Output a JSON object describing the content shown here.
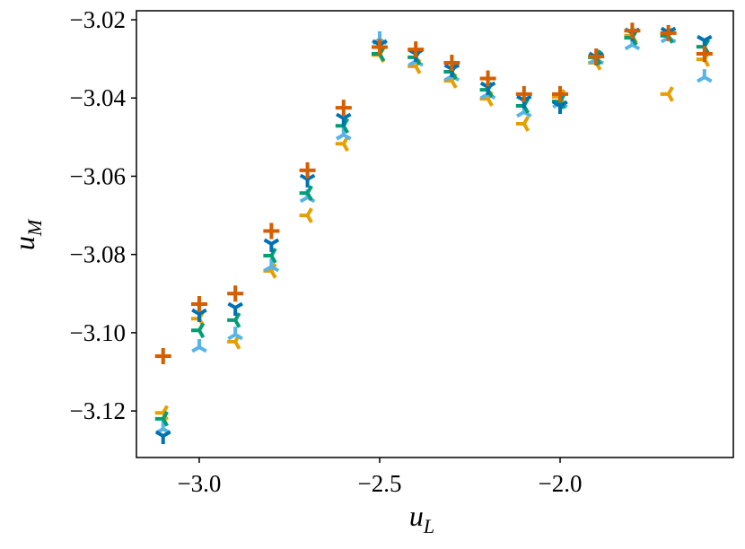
{
  "chart_data": {
    "type": "scatter",
    "xlabel": {
      "main": "u",
      "sub": "L"
    },
    "ylabel": {
      "main": "u",
      "sub": "M"
    },
    "x": [
      -3.1,
      -3.0,
      -2.9,
      -2.8,
      -2.7,
      -2.6,
      -2.5,
      -2.4,
      -2.3,
      -2.2,
      -2.1,
      -2.0,
      -1.9,
      -1.8,
      -1.7,
      -1.6
    ],
    "xlim": [
      -3.174,
      -1.52
    ],
    "ylim": [
      -3.1319,
      -3.0177
    ],
    "xticks": [
      {
        "value": -3.0,
        "label": "−3.0"
      },
      {
        "value": -2.5,
        "label": "−2.5"
      },
      {
        "value": -2.0,
        "label": "−2.0"
      }
    ],
    "yticks": [
      {
        "value": -3.12,
        "label": "−3.12"
      },
      {
        "value": -3.1,
        "label": "−3.10"
      },
      {
        "value": -3.08,
        "label": "−3.08"
      },
      {
        "value": -3.06,
        "label": "−3.06"
      },
      {
        "value": -3.04,
        "label": "−3.04"
      },
      {
        "value": -3.02,
        "label": "−3.02"
      }
    ],
    "grid": false,
    "series": [
      {
        "color": "#e69f00",
        "marker": "tri_right",
        "values": [
          -3.1205,
          -3.0964,
          -3.1023,
          -3.0842,
          -3.07,
          -3.0517,
          -3.029,
          -3.0319,
          -3.0356,
          -3.0402,
          -3.0466,
          -3.0397,
          -3.031,
          -3.0241,
          -3.039,
          -3.0301
        ]
      },
      {
        "color": "#56b4e9",
        "marker": "tri_up",
        "values": [
          -3.1246,
          -3.1037,
          -3.1005,
          -3.0831,
          -3.0654,
          -3.0494,
          -3.025,
          -3.0306,
          -3.0344,
          -3.039,
          -3.0436,
          -3.0413,
          -3.0301,
          -3.0264,
          -3.0246,
          -3.0347
        ]
      },
      {
        "color": "#009e73",
        "marker": "tickleft",
        "values": [
          -3.122,
          -3.0994,
          -3.0968,
          -3.0803,
          -3.0643,
          -3.0471,
          -3.0287,
          -3.0296,
          -3.0333,
          -3.0379,
          -3.042,
          -3.0409,
          -3.0296,
          -3.0246,
          -3.0241,
          -3.0269
        ]
      },
      {
        "color": "#0072b2",
        "marker": "tri_down",
        "values": [
          -3.1264,
          -3.0952,
          -3.0936,
          -3.0773,
          -3.0608,
          -3.0452,
          -3.0264,
          -3.0287,
          -3.0326,
          -3.0372,
          -3.0406,
          -3.042,
          -3.0296,
          -3.0234,
          -3.0232,
          -3.0253
        ]
      },
      {
        "color": "#d55e00",
        "marker": "plus",
        "values": [
          -3.106,
          -3.0927,
          -3.09,
          -3.074,
          -3.0585,
          -3.0425,
          -3.027,
          -3.0276,
          -3.031,
          -3.035,
          -3.039,
          -3.039,
          -3.0294,
          -3.0228,
          -3.0234,
          -3.0287
        ]
      }
    ]
  }
}
